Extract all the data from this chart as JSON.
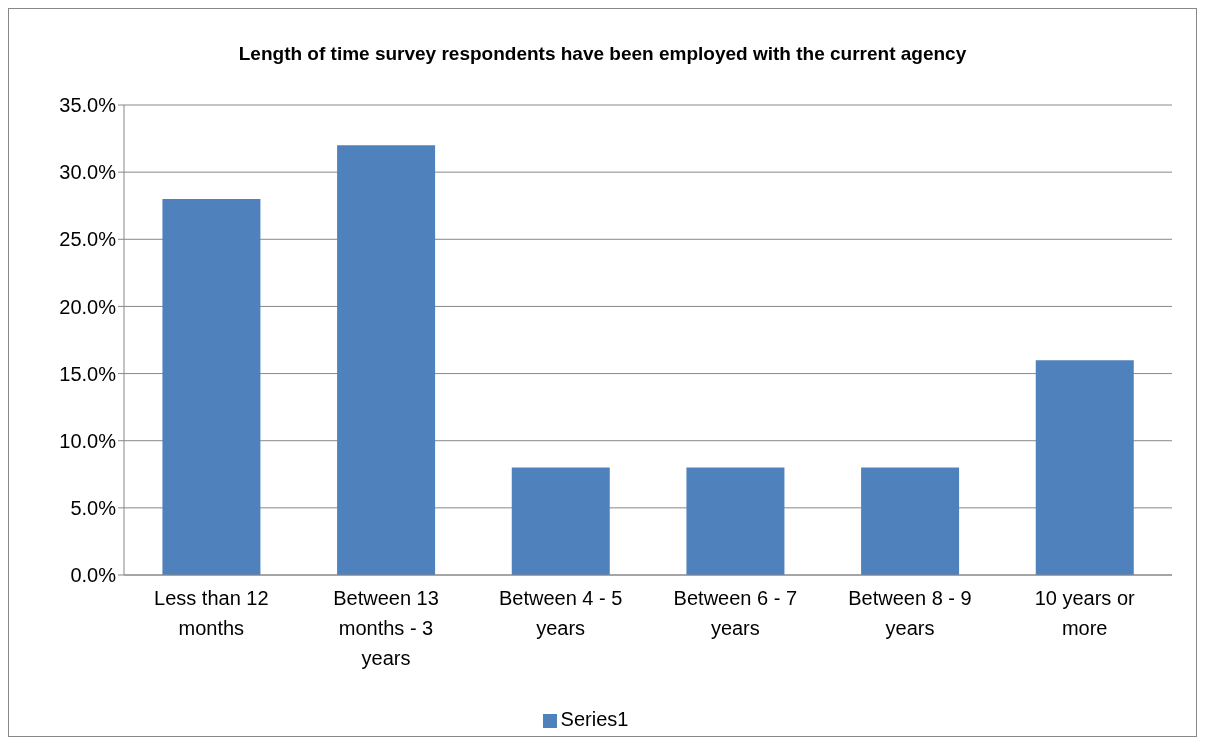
{
  "chart_data": {
    "type": "bar",
    "title": "Length of time survey respondents have been employed with the current agency",
    "categories": [
      "Less than 12 months",
      "Between 13 months - 3 years",
      "Between 4 - 5 years",
      "Between 6 - 7 years",
      "Between 8 - 9 years",
      "10 years or more"
    ],
    "series": [
      {
        "name": "Series1",
        "color": "#4f81bd",
        "values": [
          28,
          32,
          8,
          8,
          8,
          16
        ]
      }
    ],
    "ylim": [
      0,
      35
    ],
    "yticks": [
      {
        "value": 0,
        "label": "0.0%"
      },
      {
        "value": 5,
        "label": "5.0%"
      },
      {
        "value": 10,
        "label": "10.0%"
      },
      {
        "value": 15,
        "label": "15.0%"
      },
      {
        "value": 20,
        "label": "20.0%"
      },
      {
        "value": 25,
        "label": "25.0%"
      },
      {
        "value": 30,
        "label": "30.0%"
      },
      {
        "value": 35,
        "label": "35.0%"
      }
    ],
    "grid": "y",
    "legend": "bottom"
  }
}
